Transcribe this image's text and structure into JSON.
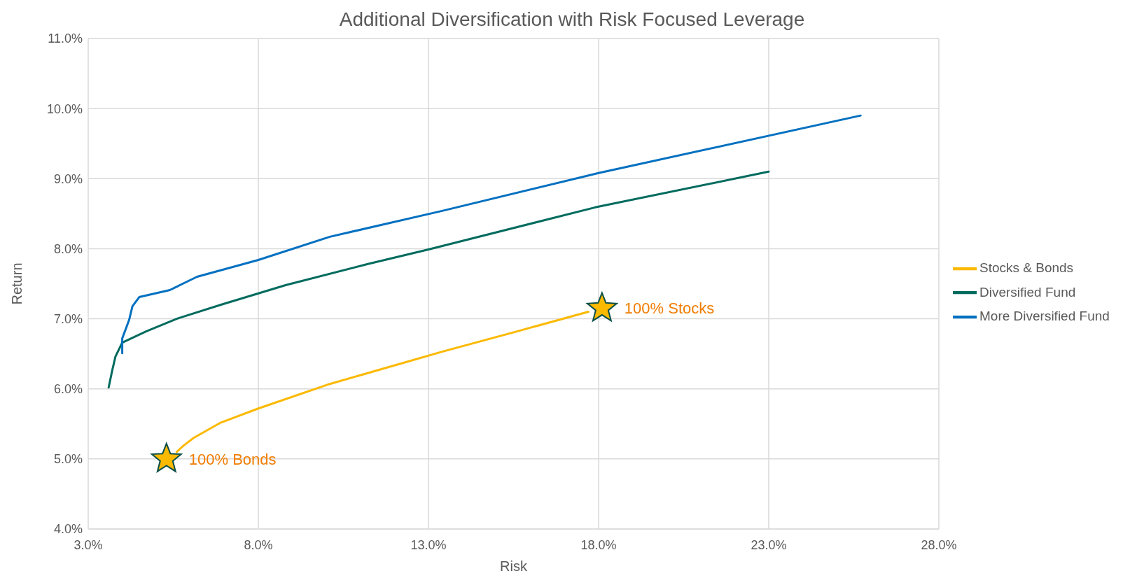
{
  "chart_data": {
    "type": "line",
    "title": "Additional Diversification with Risk Focused Leverage",
    "xlabel": "Risk",
    "ylabel": "Return",
    "xlim": [
      3,
      28
    ],
    "xticks": [
      {
        "value": 3,
        "label": "3.0%"
      },
      {
        "value": 8,
        "label": "8.0%"
      },
      {
        "value": 13,
        "label": "13.0%"
      },
      {
        "value": 18,
        "label": "18.0%"
      },
      {
        "value": 23,
        "label": "23.0%"
      },
      {
        "value": 28,
        "label": "28.0%"
      }
    ],
    "ylim": [
      4,
      11
    ],
    "yticks": [
      {
        "value": 4,
        "label": "4.0%"
      },
      {
        "value": 5,
        "label": "5.0%"
      },
      {
        "value": 6,
        "label": "6.0%"
      },
      {
        "value": 7,
        "label": "7.0%"
      },
      {
        "value": 8,
        "label": "8.0%"
      },
      {
        "value": 9,
        "label": "9.0%"
      },
      {
        "value": 10,
        "label": "10.0%"
      },
      {
        "value": 11,
        "label": "11.0%"
      }
    ],
    "grid": true,
    "legend": "right",
    "series": [
      {
        "name": "Stocks & Bonds",
        "color": "#fbb900",
        "x": [
          5.6,
          5.8,
          6.1,
          6.9,
          8.0,
          10.1,
          13.4,
          15.6,
          17.7
        ],
        "values": [
          5.1,
          5.19,
          5.3,
          5.52,
          5.72,
          6.07,
          6.53,
          6.82,
          7.1
        ]
      },
      {
        "name": "Diversified Fund",
        "color": "#006b5e",
        "x": [
          3.6,
          3.7,
          3.8,
          4.0,
          4.7,
          5.6,
          6.9,
          8.8,
          11.2,
          13.0,
          17.9,
          23.0
        ],
        "values": [
          6.02,
          6.25,
          6.46,
          6.66,
          6.82,
          7.0,
          7.2,
          7.48,
          7.78,
          7.99,
          8.59,
          9.1
        ]
      },
      {
        "name": "More Diversified Fund",
        "color": "#0070c0",
        "x": [
          4.0,
          4.0,
          4.2,
          4.3,
          4.5,
          5.4,
          6.2,
          8.0,
          10.1,
          13.4,
          18.0,
          25.7
        ],
        "values": [
          6.51,
          6.72,
          6.98,
          7.18,
          7.31,
          7.41,
          7.6,
          7.84,
          8.17,
          8.54,
          9.08,
          9.9
        ]
      },
      {
        "type": "scatter",
        "marker": "star",
        "color": "#fbb900",
        "x": [
          5.3,
          18.1
        ],
        "values": [
          5.0,
          7.15
        ]
      }
    ],
    "annotations": [
      {
        "text": "100% Bonds",
        "x": 5.3,
        "y": 5.0
      },
      {
        "text": "100% Stocks",
        "x": 18.1,
        "y": 7.15
      }
    ]
  }
}
